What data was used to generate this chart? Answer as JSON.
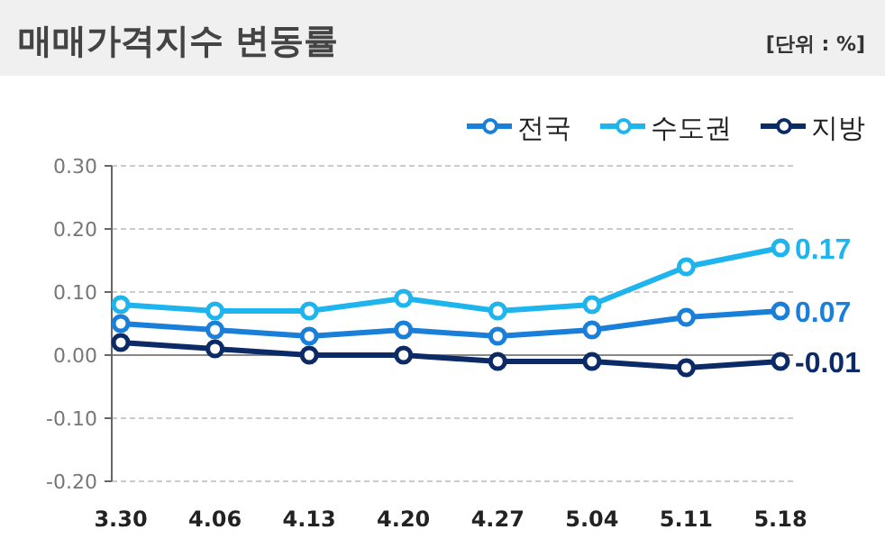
{
  "chart_data": {
    "type": "line",
    "title": "매매가격지수 변동률",
    "annotations": [
      "[단위 : %]"
    ],
    "categories": [
      "3.30",
      "4.06",
      "4.13",
      "4.20",
      "4.27",
      "5.04",
      "5.11",
      "5.18"
    ],
    "series": [
      {
        "name": "전국",
        "color": "#1a7fd8",
        "values": [
          0.05,
          0.04,
          0.03,
          0.04,
          0.03,
          0.04,
          0.06,
          0.07
        ],
        "value_labels": [
          null,
          null,
          null,
          null,
          null,
          null,
          null,
          "0.07"
        ]
      },
      {
        "name": "수도권",
        "color": "#1eb4ee",
        "values": [
          0.08,
          0.07,
          0.07,
          0.09,
          0.07,
          0.08,
          0.14,
          0.17
        ],
        "value_labels": [
          null,
          null,
          null,
          null,
          null,
          null,
          null,
          "0.17"
        ]
      },
      {
        "name": "지방",
        "color": "#0c2b66",
        "values": [
          0.02,
          0.01,
          0.0,
          0.0,
          -0.01,
          -0.01,
          -0.02,
          -0.01
        ],
        "value_labels": [
          null,
          null,
          null,
          null,
          null,
          null,
          null,
          "-0.01"
        ]
      }
    ],
    "ylim": [
      -0.2,
      0.3
    ],
    "yticks": [
      {
        "value": -0.2,
        "label": "-0.20"
      },
      {
        "value": -0.1,
        "label": "-0.10"
      },
      {
        "value": 0,
        "label": "0.00"
      },
      {
        "value": 0.1,
        "label": "0.10"
      },
      {
        "value": 0.2,
        "label": "0.20"
      },
      {
        "value": 0.3,
        "label": "0.30"
      }
    ],
    "grid": "y",
    "legend": "top right",
    "marker": "circle",
    "line_style": "solid"
  }
}
